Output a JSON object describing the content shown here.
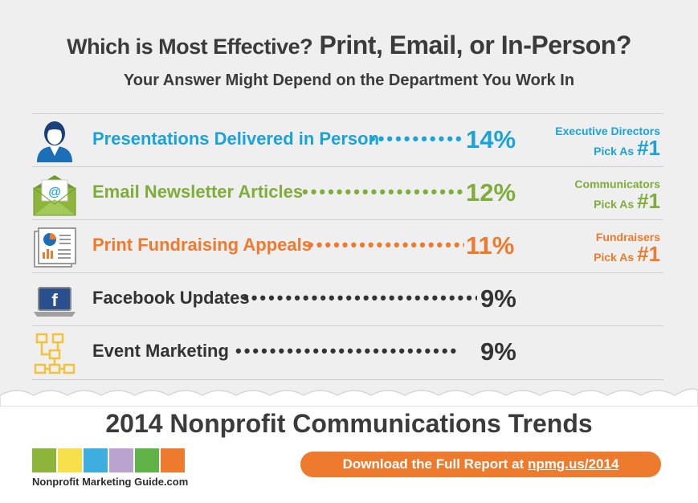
{
  "header": {
    "title_part1": "Which is Most Effective?",
    "title_part2": "Print, Email, or In-Person?",
    "subtitle": "Your Answer Might Depend on the Department You Work In"
  },
  "rows": [
    {
      "label": "Presentations Delivered in Person",
      "percent": "14%",
      "color": "#1aa3d9",
      "icon": "person-icon",
      "pick_line1": "Executive Directors",
      "pick_line2": "Pick As",
      "pick_num": "#1"
    },
    {
      "label": "Email Newsletter Articles",
      "percent": "12%",
      "color": "#7fad3a",
      "icon": "email-envelope-icon",
      "pick_line1": "Communicators",
      "pick_line2": "Pick As",
      "pick_num": "#1"
    },
    {
      "label": "Print Fundraising Appeals",
      "percent": "11%",
      "color": "#ee7a2e",
      "icon": "printed-report-icon",
      "pick_line1": "Fundraisers",
      "pick_line2": "Pick As",
      "pick_num": "#1"
    },
    {
      "label": "Facebook Updates",
      "percent": "9%",
      "color": "#333333",
      "icon": "facebook-laptop-icon"
    },
    {
      "label": "Event Marketing",
      "percent": "9%",
      "color": "#333333",
      "icon": "flowchart-icon"
    }
  ],
  "footer": {
    "trends_title": "2014 Nonprofit Communications Trends",
    "logo_text": "Nonprofit Marketing Guide.com",
    "logo_colors": [
      "#8db53c",
      "#f5e04b",
      "#3eaee0",
      "#b9a3cf",
      "#5fb246",
      "#ee7a2e"
    ],
    "download_text": "Download the Full Report at",
    "download_url": "npmg.us/2014"
  }
}
